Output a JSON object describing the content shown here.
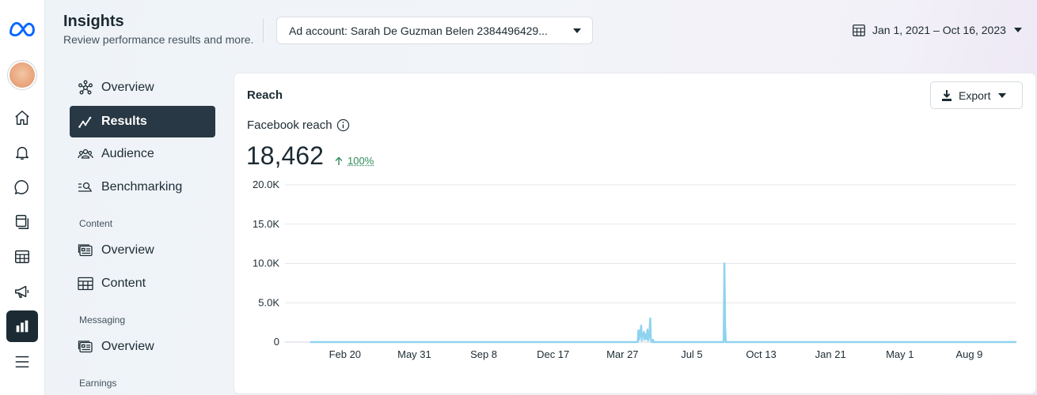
{
  "colors": {
    "accent_dark": "#1c2b33",
    "nav_active": "#283844",
    "positive": "#2e8b57",
    "series_line": "#8fd3f0",
    "meta_blue": "#0866ff"
  },
  "rail": {
    "icons": [
      "meta-logo-icon",
      "avatar",
      "home-icon",
      "bell-icon",
      "chat-icon",
      "pages-icon",
      "table-icon",
      "megaphone-icon",
      "insights-icon",
      "menu-icon"
    ],
    "active": "insights-icon"
  },
  "header": {
    "title": "Insights",
    "subtitle": "Review performance results and more.",
    "ad_account_label": "Ad account: Sarah De Guzman Belen 2384496429...",
    "date_range": "Jan 1, 2021 – Oct 16, 2023"
  },
  "nav": {
    "items": [
      {
        "label": "Overview",
        "icon": "network-icon",
        "active": false
      },
      {
        "label": "Results",
        "icon": "trend-icon",
        "active": true
      },
      {
        "label": "Audience",
        "icon": "people-icon",
        "active": false
      },
      {
        "label": "Benchmarking",
        "icon": "benchmark-icon",
        "active": false
      }
    ],
    "content_section": "Content",
    "content_items": [
      {
        "label": "Overview",
        "icon": "content-overview-icon"
      },
      {
        "label": "Content",
        "icon": "grid-icon"
      }
    ],
    "messaging_section": "Messaging",
    "messaging_items": [
      {
        "label": "Overview",
        "icon": "messaging-overview-icon"
      }
    ],
    "earnings_section": "Earnings"
  },
  "card": {
    "title": "Reach",
    "export_label": "Export",
    "metric_label": "Facebook reach",
    "metric_value": "18,462",
    "metric_change": "100%"
  },
  "chart_data": {
    "type": "line",
    "title": "",
    "xlabel": "",
    "ylabel": "",
    "ylim": [
      0,
      20000
    ],
    "y_ticks": [
      "0",
      "5.0K",
      "10.0K",
      "15.0K",
      "20.0K"
    ],
    "y_tick_values": [
      0,
      5000,
      10000,
      15000,
      20000
    ],
    "x_ticks": [
      "Feb 20",
      "May 31",
      "Sep 8",
      "Dec 17",
      "Mar 27",
      "Jul 5",
      "Oct 13",
      "Jan 21",
      "May 1",
      "Aug 9"
    ],
    "x_tick_dates": [
      "2021-02-20",
      "2021-05-31",
      "2021-09-08",
      "2021-12-17",
      "2022-03-27",
      "2022-07-05",
      "2022-10-13",
      "2023-01-21",
      "2023-05-01",
      "2023-08-09"
    ],
    "x_range": [
      "2021-01-01",
      "2023-10-16"
    ],
    "grid": true,
    "series": [
      {
        "x": [
          "2021-01-01",
          "2022-04-18",
          "2022-04-19",
          "2022-04-20",
          "2022-04-21",
          "2022-04-23",
          "2022-04-24",
          "2022-04-25",
          "2022-04-27",
          "2022-04-28",
          "2022-04-29",
          "2022-05-01",
          "2022-05-02",
          "2022-05-03",
          "2022-05-05",
          "2022-05-06",
          "2022-05-07",
          "2022-05-09",
          "2022-05-10",
          "2022-05-11",
          "2022-08-20",
          "2022-08-21",
          "2022-08-22",
          "2022-08-23",
          "2022-08-24",
          "2023-10-16"
        ],
        "y": [
          0,
          0,
          1500,
          300,
          800,
          2100,
          200,
          900,
          1300,
          300,
          1000,
          400,
          1600,
          200,
          1200,
          3000,
          200,
          0,
          300,
          0,
          0,
          10000,
          2000,
          0,
          0,
          0
        ]
      }
    ]
  }
}
